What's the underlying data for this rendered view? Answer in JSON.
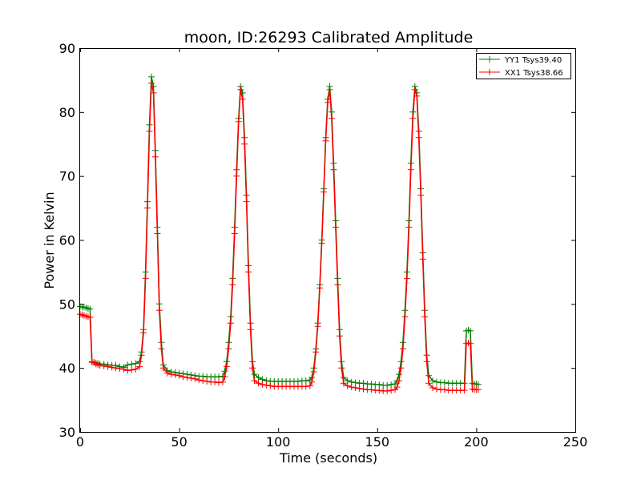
{
  "chart_data": {
    "type": "line",
    "title": "moon, ID:26293 Calibrated Amplitude",
    "xlabel": "Time (seconds)",
    "ylabel": "Power in Kelvin",
    "xlim": [
      0,
      250
    ],
    "ylim": [
      30,
      90
    ],
    "xticks": [
      0,
      50,
      100,
      150,
      200,
      250
    ],
    "yticks": [
      30,
      40,
      50,
      60,
      70,
      80,
      90
    ],
    "grid": false,
    "legend_position": "top-right",
    "series": [
      {
        "name": "YY1 Tsys39.40",
        "color": "#008000",
        "marker": "+",
        "points": [
          [
            0,
            49.6
          ],
          [
            1,
            49.5
          ],
          [
            2,
            49.5
          ],
          [
            3,
            49.4
          ],
          [
            4,
            49.3
          ],
          [
            5,
            49.2
          ],
          [
            6,
            41.0
          ],
          [
            7,
            40.9
          ],
          [
            8,
            40.8
          ],
          [
            9,
            40.7
          ],
          [
            10,
            40.6
          ],
          [
            12,
            40.6
          ],
          [
            14,
            40.5
          ],
          [
            16,
            40.4
          ],
          [
            18,
            40.4
          ],
          [
            20,
            40.2
          ],
          [
            22,
            40.1
          ],
          [
            24,
            40.5
          ],
          [
            26,
            40.6
          ],
          [
            28,
            40.7
          ],
          [
            30,
            41.0
          ],
          [
            31,
            42.5
          ],
          [
            32,
            46.0
          ],
          [
            33,
            55.0
          ],
          [
            34,
            66.0
          ],
          [
            35,
            78.0
          ],
          [
            36,
            85.5
          ],
          [
            37,
            84.0
          ],
          [
            38,
            74.0
          ],
          [
            39,
            62.0
          ],
          [
            40,
            50.0
          ],
          [
            41,
            44.0
          ],
          [
            42,
            40.5
          ],
          [
            44,
            39.6
          ],
          [
            46,
            39.4
          ],
          [
            48,
            39.3
          ],
          [
            50,
            39.2
          ],
          [
            52,
            39.1
          ],
          [
            54,
            39.0
          ],
          [
            56,
            38.9
          ],
          [
            58,
            38.8
          ],
          [
            60,
            38.7
          ],
          [
            62,
            38.7
          ],
          [
            64,
            38.6
          ],
          [
            66,
            38.6
          ],
          [
            68,
            38.6
          ],
          [
            70,
            38.6
          ],
          [
            72,
            38.7
          ],
          [
            73,
            39.5
          ],
          [
            74,
            41.0
          ],
          [
            75,
            44.0
          ],
          [
            76,
            48.0
          ],
          [
            77,
            54.0
          ],
          [
            78,
            62.0
          ],
          [
            79,
            71.0
          ],
          [
            80,
            79.0
          ],
          [
            81,
            84.0
          ],
          [
            82,
            83.0
          ],
          [
            83,
            76.0
          ],
          [
            84,
            67.0
          ],
          [
            85,
            56.0
          ],
          [
            86,
            47.0
          ],
          [
            87,
            41.0
          ],
          [
            88,
            39.0
          ],
          [
            90,
            38.5
          ],
          [
            92,
            38.2
          ],
          [
            94,
            38.0
          ],
          [
            96,
            37.9
          ],
          [
            98,
            37.9
          ],
          [
            100,
            37.9
          ],
          [
            102,
            37.9
          ],
          [
            104,
            37.9
          ],
          [
            106,
            37.9
          ],
          [
            108,
            37.9
          ],
          [
            110,
            37.9
          ],
          [
            112,
            38.0
          ],
          [
            114,
            38.0
          ],
          [
            116,
            38.1
          ],
          [
            117,
            38.5
          ],
          [
            118,
            40.0
          ],
          [
            119,
            43.0
          ],
          [
            120,
            47.0
          ],
          [
            121,
            53.0
          ],
          [
            122,
            60.0
          ],
          [
            123,
            68.0
          ],
          [
            124,
            76.0
          ],
          [
            125,
            82.0
          ],
          [
            126,
            84.0
          ],
          [
            127,
            80.0
          ],
          [
            128,
            72.0
          ],
          [
            129,
            63.0
          ],
          [
            130,
            54.0
          ],
          [
            131,
            46.0
          ],
          [
            132,
            41.0
          ],
          [
            133,
            38.5
          ],
          [
            135,
            38.0
          ],
          [
            137,
            37.8
          ],
          [
            139,
            37.7
          ],
          [
            141,
            37.6
          ],
          [
            143,
            37.6
          ],
          [
            145,
            37.5
          ],
          [
            147,
            37.5
          ],
          [
            149,
            37.4
          ],
          [
            151,
            37.4
          ],
          [
            153,
            37.3
          ],
          [
            155,
            37.3
          ],
          [
            157,
            37.4
          ],
          [
            159,
            37.5
          ],
          [
            160,
            38.0
          ],
          [
            161,
            39.0
          ],
          [
            162,
            41.0
          ],
          [
            163,
            44.0
          ],
          [
            164,
            49.0
          ],
          [
            165,
            55.0
          ],
          [
            166,
            63.0
          ],
          [
            167,
            72.0
          ],
          [
            168,
            80.0
          ],
          [
            169,
            84.0
          ],
          [
            170,
            83.0
          ],
          [
            171,
            77.0
          ],
          [
            172,
            68.0
          ],
          [
            173,
            58.0
          ],
          [
            174,
            49.0
          ],
          [
            175,
            42.0
          ],
          [
            176,
            38.8
          ],
          [
            178,
            38.0
          ],
          [
            180,
            37.8
          ],
          [
            182,
            37.7
          ],
          [
            184,
            37.7
          ],
          [
            186,
            37.6
          ],
          [
            188,
            37.6
          ],
          [
            190,
            37.6
          ],
          [
            192,
            37.6
          ],
          [
            194,
            37.6
          ],
          [
            195,
            45.8
          ],
          [
            196,
            45.9
          ],
          [
            197,
            45.8
          ],
          [
            198,
            37.6
          ],
          [
            199,
            37.5
          ],
          [
            200,
            37.5
          ],
          [
            201,
            37.4
          ]
        ]
      },
      {
        "name": "XX1 Tsys38.66",
        "color": "#ff0000",
        "marker": "+",
        "points": [
          [
            0,
            48.4
          ],
          [
            1,
            48.3
          ],
          [
            2,
            48.2
          ],
          [
            3,
            48.1
          ],
          [
            4,
            48.0
          ],
          [
            5,
            47.9
          ],
          [
            6,
            40.9
          ],
          [
            7,
            40.8
          ],
          [
            8,
            40.6
          ],
          [
            9,
            40.5
          ],
          [
            10,
            40.4
          ],
          [
            12,
            40.3
          ],
          [
            14,
            40.2
          ],
          [
            16,
            40.1
          ],
          [
            18,
            40.0
          ],
          [
            20,
            39.9
          ],
          [
            22,
            39.8
          ],
          [
            24,
            39.6
          ],
          [
            26,
            39.7
          ],
          [
            28,
            39.8
          ],
          [
            30,
            40.2
          ],
          [
            31,
            42.0
          ],
          [
            32,
            45.5
          ],
          [
            33,
            54.0
          ],
          [
            34,
            65.0
          ],
          [
            35,
            77.0
          ],
          [
            36,
            84.5
          ],
          [
            37,
            83.0
          ],
          [
            38,
            73.0
          ],
          [
            39,
            61.0
          ],
          [
            40,
            49.0
          ],
          [
            41,
            43.0
          ],
          [
            42,
            40.0
          ],
          [
            44,
            39.2
          ],
          [
            46,
            39.0
          ],
          [
            48,
            38.9
          ],
          [
            50,
            38.8
          ],
          [
            52,
            38.6
          ],
          [
            54,
            38.5
          ],
          [
            56,
            38.4
          ],
          [
            58,
            38.3
          ],
          [
            60,
            38.1
          ],
          [
            62,
            38.0
          ],
          [
            64,
            37.9
          ],
          [
            66,
            37.8
          ],
          [
            68,
            37.8
          ],
          [
            70,
            37.7
          ],
          [
            72,
            37.8
          ],
          [
            73,
            38.6
          ],
          [
            74,
            40.2
          ],
          [
            75,
            43.0
          ],
          [
            76,
            47.0
          ],
          [
            77,
            53.0
          ],
          [
            78,
            61.0
          ],
          [
            79,
            70.0
          ],
          [
            80,
            78.5
          ],
          [
            81,
            83.5
          ],
          [
            82,
            82.0
          ],
          [
            83,
            75.0
          ],
          [
            84,
            66.0
          ],
          [
            85,
            55.0
          ],
          [
            86,
            46.0
          ],
          [
            87,
            40.0
          ],
          [
            88,
            38.0
          ],
          [
            90,
            37.6
          ],
          [
            92,
            37.4
          ],
          [
            94,
            37.3
          ],
          [
            96,
            37.2
          ],
          [
            98,
            37.1
          ],
          [
            100,
            37.1
          ],
          [
            102,
            37.1
          ],
          [
            104,
            37.1
          ],
          [
            106,
            37.1
          ],
          [
            108,
            37.1
          ],
          [
            110,
            37.1
          ],
          [
            112,
            37.1
          ],
          [
            114,
            37.1
          ],
          [
            116,
            37.2
          ],
          [
            117,
            37.8
          ],
          [
            118,
            39.4
          ],
          [
            119,
            42.5
          ],
          [
            120,
            46.5
          ],
          [
            121,
            52.5
          ],
          [
            122,
            59.5
          ],
          [
            123,
            67.5
          ],
          [
            124,
            75.5
          ],
          [
            125,
            81.5
          ],
          [
            126,
            83.5
          ],
          [
            127,
            79.0
          ],
          [
            128,
            71.0
          ],
          [
            129,
            62.0
          ],
          [
            130,
            53.0
          ],
          [
            131,
            45.0
          ],
          [
            132,
            40.0
          ],
          [
            133,
            37.6
          ],
          [
            135,
            37.2
          ],
          [
            137,
            37.0
          ],
          [
            139,
            36.9
          ],
          [
            141,
            36.8
          ],
          [
            143,
            36.7
          ],
          [
            145,
            36.6
          ],
          [
            147,
            36.6
          ],
          [
            149,
            36.5
          ],
          [
            151,
            36.5
          ],
          [
            153,
            36.4
          ],
          [
            155,
            36.4
          ],
          [
            157,
            36.5
          ],
          [
            159,
            36.6
          ],
          [
            160,
            37.0
          ],
          [
            161,
            38.0
          ],
          [
            162,
            40.0
          ],
          [
            163,
            43.0
          ],
          [
            164,
            48.0
          ],
          [
            165,
            54.0
          ],
          [
            166,
            62.0
          ],
          [
            167,
            71.0
          ],
          [
            168,
            79.0
          ],
          [
            169,
            83.5
          ],
          [
            170,
            82.5
          ],
          [
            171,
            76.0
          ],
          [
            172,
            67.0
          ],
          [
            173,
            57.0
          ],
          [
            174,
            48.0
          ],
          [
            175,
            41.0
          ],
          [
            176,
            37.6
          ],
          [
            178,
            36.9
          ],
          [
            180,
            36.7
          ],
          [
            182,
            36.6
          ],
          [
            184,
            36.6
          ],
          [
            186,
            36.5
          ],
          [
            188,
            36.5
          ],
          [
            190,
            36.5
          ],
          [
            192,
            36.5
          ],
          [
            194,
            36.5
          ],
          [
            195,
            43.8
          ],
          [
            196,
            43.9
          ],
          [
            197,
            43.8
          ],
          [
            198,
            36.7
          ],
          [
            199,
            36.6
          ],
          [
            200,
            36.6
          ],
          [
            201,
            36.6
          ]
        ]
      }
    ]
  }
}
